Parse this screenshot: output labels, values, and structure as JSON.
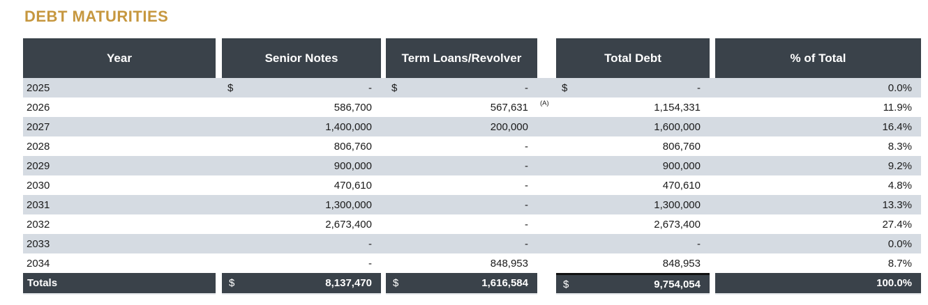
{
  "title": "DEBT MATURITIES",
  "colors": {
    "title_gold": "#c6973f",
    "header_dark": "#3a424a",
    "stripe": "#d5dbe2",
    "total_top_border": "#111111"
  },
  "currency_symbol": "$",
  "footnote_marker": "(A)",
  "table": {
    "columns": [
      "Year",
      "Senior Notes",
      "Term Loans/Revolver",
      "Total Debt",
      "% of Total"
    ],
    "rows": [
      {
        "year": "2025",
        "dollar": true,
        "senior": "-",
        "term": "-",
        "total": "-",
        "pct": "0.0%",
        "note": ""
      },
      {
        "year": "2026",
        "dollar": false,
        "senior": "586,700",
        "term": "567,631",
        "total": "1,154,331",
        "pct": "11.9%",
        "note": "(A)"
      },
      {
        "year": "2027",
        "dollar": false,
        "senior": "1,400,000",
        "term": "200,000",
        "total": "1,600,000",
        "pct": "16.4%",
        "note": ""
      },
      {
        "year": "2028",
        "dollar": false,
        "senior": "806,760",
        "term": "-",
        "total": "806,760",
        "pct": "8.3%",
        "note": ""
      },
      {
        "year": "2029",
        "dollar": false,
        "senior": "900,000",
        "term": "-",
        "total": "900,000",
        "pct": "9.2%",
        "note": ""
      },
      {
        "year": "2030",
        "dollar": false,
        "senior": "470,610",
        "term": "-",
        "total": "470,610",
        "pct": "4.8%",
        "note": ""
      },
      {
        "year": "2031",
        "dollar": false,
        "senior": "1,300,000",
        "term": "-",
        "total": "1,300,000",
        "pct": "13.3%",
        "note": ""
      },
      {
        "year": "2032",
        "dollar": false,
        "senior": "2,673,400",
        "term": "-",
        "total": "2,673,400",
        "pct": "27.4%",
        "note": ""
      },
      {
        "year": "2033",
        "dollar": false,
        "senior": "-",
        "term": "-",
        "total": "-",
        "pct": "0.0%",
        "note": ""
      },
      {
        "year": "2034",
        "dollar": false,
        "senior": "-",
        "term": "848,953",
        "total": "848,953",
        "pct": "8.7%",
        "note": ""
      }
    ],
    "totals": {
      "label": "Totals",
      "senior": "8,137,470",
      "term": "1,616,584",
      "total": "9,754,054",
      "pct": "100.0%"
    }
  }
}
